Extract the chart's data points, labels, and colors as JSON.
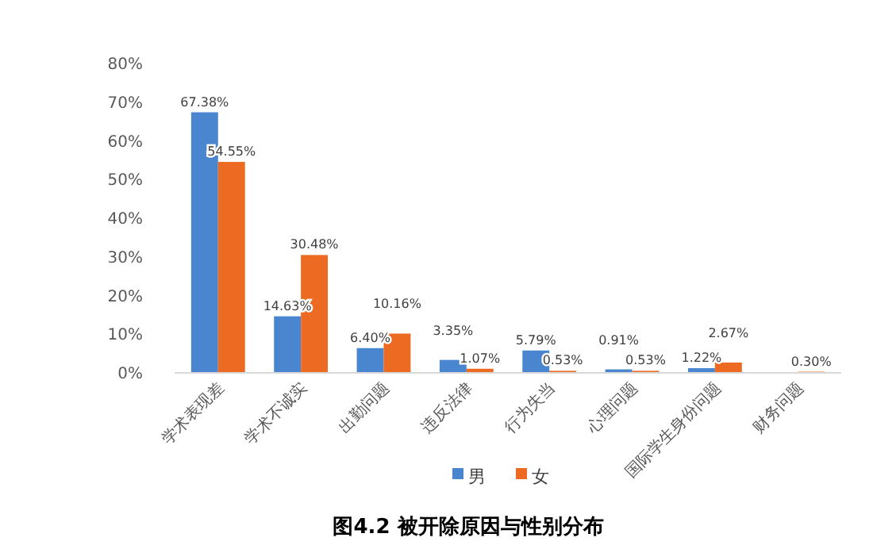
{
  "chart_data": {
    "type": "bar",
    "title": "图4.2 被开除原因与性别分布",
    "categories": [
      "学术表现差",
      "学术不诚实",
      "出勤问题",
      "违反法律",
      "行为失当",
      "心理问题",
      "国际学生身份问题",
      "财务问题"
    ],
    "series": [
      {
        "name": "男",
        "color": "#4a86cf",
        "values": [
          67.38,
          14.63,
          6.4,
          3.35,
          5.79,
          0.91,
          1.22,
          0
        ],
        "value_labels": [
          "67.38%",
          "14.63%",
          "6.40%",
          "3.35%",
          "5.79%",
          "0.91%",
          "1.22%",
          null
        ]
      },
      {
        "name": "女",
        "color": "#ec6a22",
        "values": [
          54.55,
          30.48,
          10.16,
          1.07,
          0.53,
          0.53,
          2.67,
          0.3
        ],
        "value_labels": [
          "54.55%",
          "30.48%",
          "10.16%",
          "1.07%",
          "0.53%",
          "0.53%",
          "2.67%",
          "0.30%"
        ]
      }
    ],
    "ylim": [
      0,
      80
    ],
    "yticks": [
      {
        "value": 0,
        "label": "0%"
      },
      {
        "value": 10,
        "label": "10%"
      },
      {
        "value": 20,
        "label": "20%"
      },
      {
        "value": 30,
        "label": "30%"
      },
      {
        "value": 40,
        "label": "40%"
      },
      {
        "value": 50,
        "label": "50%"
      },
      {
        "value": 60,
        "label": "60%"
      },
      {
        "value": 70,
        "label": "70%"
      },
      {
        "value": 80,
        "label": "80%"
      }
    ],
    "legend": "bottom"
  }
}
